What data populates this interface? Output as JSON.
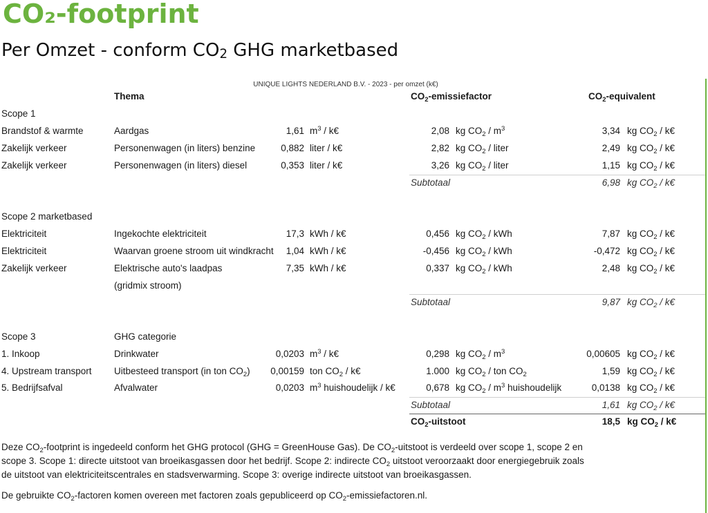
{
  "title": "CO₂-footprint",
  "subtitle_pre": "Per Omzet - conform CO",
  "subtitle_sub": "2",
  "subtitle_post": " GHG marketbased",
  "caption": "UNIQUE LIGHTS NEDERLAND B.V. - 2023 - per omzet (k€)",
  "headers": {
    "thema": "Thema",
    "factor_pre": "CO",
    "factor_sub": "2",
    "factor_post": "-emissiefactor",
    "equiv_pre": "CO",
    "equiv_sub": "2",
    "equiv_post": "-equivalent"
  },
  "scope1": {
    "label": "Scope 1",
    "rows": [
      {
        "cat": "Brandstof & warmte",
        "thema": "Aardgas",
        "qty": "1,61",
        "unit_a": "m",
        "unit_sup": "3",
        "unit_b": " / k€",
        "factor": "2,08",
        "f_a": "kg CO",
        "f_sub": "2",
        "f_b": " / m",
        "f_sup": "3",
        "eq": "3,34",
        "eq_a": "kg CO",
        "eq_sub": "2",
        "eq_b": " / k€"
      },
      {
        "cat": "Zakelijk verkeer",
        "thema": "Personenwagen (in liters) benzine",
        "qty": "0,882",
        "unit_a": "liter / k€",
        "unit_sup": "",
        "unit_b": "",
        "factor": "2,82",
        "f_a": "kg CO",
        "f_sub": "2",
        "f_b": " / liter",
        "f_sup": "",
        "eq": "2,49",
        "eq_a": "kg CO",
        "eq_sub": "2",
        "eq_b": " / k€"
      },
      {
        "cat": "Zakelijk verkeer",
        "thema": "Personenwagen (in liters) diesel",
        "qty": "0,353",
        "unit_a": "liter / k€",
        "unit_sup": "",
        "unit_b": "",
        "factor": "3,26",
        "f_a": "kg CO",
        "f_sub": "2",
        "f_b": " / liter",
        "f_sup": "",
        "eq": "1,15",
        "eq_a": "kg CO",
        "eq_sub": "2",
        "eq_b": " / k€"
      }
    ],
    "subtotal_label": "Subtotaal",
    "subtotal_value": "6,98",
    "subtotal_a": "kg CO",
    "subtotal_sub": "2",
    "subtotal_b": " / k€"
  },
  "scope2": {
    "label": "Scope 2 marketbased",
    "rows": [
      {
        "cat": "Elektriciteit",
        "thema": "Ingekochte elektriciteit",
        "qty": "17,3",
        "unit": "kWh / k€",
        "factor": "0,456",
        "f_a": "kg CO",
        "f_sub": "2",
        "f_b": " / kWh",
        "eq": "7,87",
        "eq_a": "kg CO",
        "eq_sub": "2",
        "eq_b": " / k€"
      },
      {
        "cat": "Elektriciteit",
        "thema": "Waarvan groene stroom uit windkracht",
        "qty": "1,04",
        "unit": "kWh / k€",
        "factor": "-0,456",
        "f_a": "kg CO",
        "f_sub": "2",
        "f_b": " / kWh",
        "eq": "-0,472",
        "eq_a": "kg CO",
        "eq_sub": "2",
        "eq_b": " / k€"
      },
      {
        "cat": "Zakelijk verkeer",
        "thema": "Elektrische auto's laadpas",
        "thema2": "(gridmix stroom)",
        "qty": "7,35",
        "unit": "kWh / k€",
        "factor": "0,337",
        "f_a": "kg CO",
        "f_sub": "2",
        "f_b": " / kWh",
        "eq": "2,48",
        "eq_a": "kg CO",
        "eq_sub": "2",
        "eq_b": " / k€"
      }
    ],
    "subtotal_label": "Subtotaal",
    "subtotal_value": "9,87",
    "subtotal_a": "kg CO",
    "subtotal_sub": "2",
    "subtotal_b": " / k€"
  },
  "scope3": {
    "label": "Scope 3",
    "category_header": "GHG categorie",
    "rows": [
      {
        "cat": "1. Inkoop",
        "thema": "Drinkwater",
        "qty": "0,0203",
        "u_a": "m",
        "u_sup": "3",
        "u_b": " / k€",
        "u_sub": "",
        "u_c": "",
        "factor": "0,298",
        "f_a": "kg CO",
        "f_sub": "2",
        "f_b": " / m",
        "f_sup": "3",
        "f_c": "",
        "eq": "0,00605",
        "eq_a": "kg CO",
        "eq_sub": "2",
        "eq_b": " / k€"
      },
      {
        "cat": "4. Upstream transport",
        "thema_a": "Uitbesteed transport (in ton CO",
        "thema_sub": "2",
        "thema_b": ")",
        "qty": "0,00159",
        "u_a": "ton CO",
        "u_sup": "",
        "u_sub": "2",
        "u_b": " / k€",
        "u_c": "",
        "factor": "1.000",
        "f_a": "kg CO",
        "f_sub": "2",
        "f_b": " / ton CO",
        "f_sup": "",
        "f_sub2": "2",
        "f_c": "",
        "eq": "1,59",
        "eq_a": "kg CO",
        "eq_sub": "2",
        "eq_b": " / k€"
      },
      {
        "cat": "5. Bedrijfsafval",
        "thema": "Afvalwater",
        "qty": "0,0203",
        "u_a": "m",
        "u_sup": "3",
        "u_b": " huishoudelijk / k€",
        "u_sub": "",
        "u_c": "",
        "factor": "0,678",
        "f_a": "kg CO",
        "f_sub": "2",
        "f_b": " / m",
        "f_sup": "3",
        "f_c": " huishoudelijk",
        "eq": "0,0138",
        "eq_a": "kg CO",
        "eq_sub": "2",
        "eq_b": " / k€"
      }
    ],
    "subtotal_label": "Subtotaal",
    "subtotal_value": "1,61",
    "subtotal_a": "kg CO",
    "subtotal_sub": "2",
    "subtotal_b": " / k€"
  },
  "total": {
    "label_pre": "CO",
    "label_sub": "2",
    "label_post": "-uitstoot",
    "value": "18,5",
    "unit_a": "kg CO",
    "unit_sub": "2",
    "unit_b": " / k€"
  },
  "footnote": {
    "p1_a": "Deze CO",
    "p1_sub1": "2",
    "p1_b": "-footprint is ingedeeld conform het GHG protocol (GHG = GreenHouse Gas). De CO",
    "p1_sub2": "2",
    "p1_c": "-uitstoot is verdeeld over scope 1, scope 2 en scope 3. Scope 1: directe uitstoot van broeikasgassen door het bedrijf. Scope 2: indirecte CO",
    "p1_sub3": "2",
    "p1_d": " uitstoot veroorzaakt door energiegebruik zoals de uitstoot van elektriciteitscentrales en stadsverwarming. Scope 3: overige indirecte uitstoot van broeikasgassen.",
    "p2_a": "De gebruikte CO",
    "p2_sub1": "2",
    "p2_b": "-factoren komen overeen met factoren zoals gepubliceerd op CO",
    "p2_sub2": "2",
    "p2_c": "-emissiefactoren.nl."
  }
}
